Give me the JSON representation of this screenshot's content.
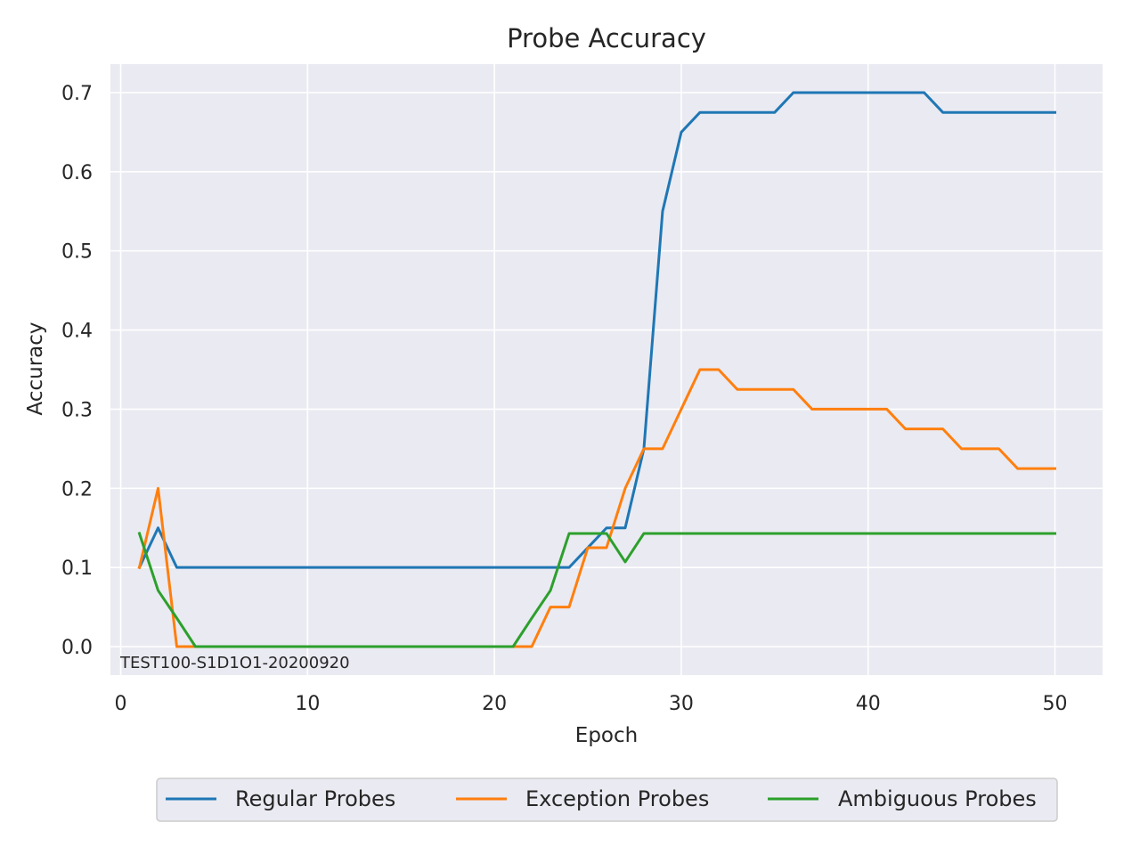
{
  "chart_data": {
    "type": "line",
    "title": "Probe Accuracy",
    "xlabel": "Epoch",
    "ylabel": "Accuracy",
    "xlim": [
      -0.55,
      52.55
    ],
    "ylim": [
      -0.036,
      0.736
    ],
    "xticks": [
      0,
      10,
      20,
      30,
      40,
      50
    ],
    "yticks": [
      0.0,
      0.1,
      0.2,
      0.3,
      0.4,
      0.5,
      0.6,
      0.7
    ],
    "xtick_labels": [
      "0",
      "10",
      "20",
      "30",
      "40",
      "50"
    ],
    "ytick_labels": [
      "0.0",
      "0.1",
      "0.2",
      "0.3",
      "0.4",
      "0.5",
      "0.6",
      "0.7"
    ],
    "grid": true,
    "legend_position": "bottom-center",
    "annotation": "TEST100-S1D1O1-20200920",
    "x": [
      1,
      2,
      3,
      4,
      5,
      6,
      7,
      8,
      9,
      10,
      11,
      12,
      13,
      14,
      15,
      16,
      17,
      18,
      19,
      20,
      21,
      22,
      23,
      24,
      25,
      26,
      27,
      28,
      29,
      30,
      31,
      32,
      33,
      34,
      35,
      36,
      37,
      38,
      39,
      40,
      41,
      42,
      43,
      44,
      45,
      46,
      47,
      48,
      49,
      50
    ],
    "series": [
      {
        "name": "Regular Probes",
        "color": "#1f77b4",
        "values": [
          0.1,
          0.15,
          0.1,
          0.1,
          0.1,
          0.1,
          0.1,
          0.1,
          0.1,
          0.1,
          0.1,
          0.1,
          0.1,
          0.1,
          0.1,
          0.1,
          0.1,
          0.1,
          0.1,
          0.1,
          0.1,
          0.1,
          0.1,
          0.1,
          0.125,
          0.15,
          0.15,
          0.25,
          0.55,
          0.65,
          0.675,
          0.675,
          0.675,
          0.675,
          0.675,
          0.7,
          0.7,
          0.7,
          0.7,
          0.7,
          0.7,
          0.7,
          0.7,
          0.675,
          0.675,
          0.675,
          0.675,
          0.675,
          0.675,
          0.675
        ]
      },
      {
        "name": "Exception Probes",
        "color": "#ff7f0e",
        "values": [
          0.1,
          0.2,
          0.0,
          0.0,
          0.0,
          0.0,
          0.0,
          0.0,
          0.0,
          0.0,
          0.0,
          0.0,
          0.0,
          0.0,
          0.0,
          0.0,
          0.0,
          0.0,
          0.0,
          0.0,
          0.0,
          0.0,
          0.05,
          0.05,
          0.125,
          0.125,
          0.2,
          0.25,
          0.25,
          0.3,
          0.35,
          0.35,
          0.325,
          0.325,
          0.325,
          0.325,
          0.3,
          0.3,
          0.3,
          0.3,
          0.3,
          0.275,
          0.275,
          0.275,
          0.25,
          0.25,
          0.25,
          0.225,
          0.225,
          0.225
        ]
      },
      {
        "name": "Ambiguous Probes",
        "color": "#2ca02c",
        "values": [
          0.143,
          0.071,
          0.036,
          0.0,
          0.0,
          0.0,
          0.0,
          0.0,
          0.0,
          0.0,
          0.0,
          0.0,
          0.0,
          0.0,
          0.0,
          0.0,
          0.0,
          0.0,
          0.0,
          0.0,
          0.0,
          0.036,
          0.071,
          0.143,
          0.143,
          0.143,
          0.107,
          0.143,
          0.143,
          0.143,
          0.143,
          0.143,
          0.143,
          0.143,
          0.143,
          0.143,
          0.143,
          0.143,
          0.143,
          0.143,
          0.143,
          0.143,
          0.143,
          0.143,
          0.143,
          0.143,
          0.143,
          0.143,
          0.143,
          0.143
        ]
      }
    ]
  }
}
